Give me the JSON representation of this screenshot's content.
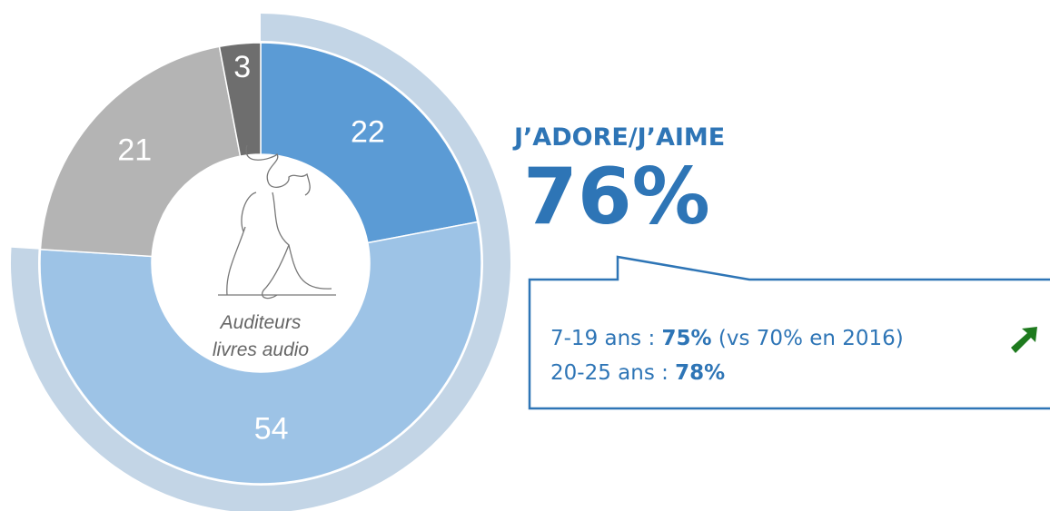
{
  "chart_data": {
    "type": "donut",
    "values": [
      22,
      54,
      21,
      3
    ],
    "colors": [
      "#5b9bd5",
      "#9dc3e6",
      "#b4b4b4",
      "#6e6e6e"
    ],
    "center_label": [
      "Auditeurs",
      "livres audio"
    ],
    "outer": {
      "value": 76,
      "value_label": "76%",
      "color": "#c3d5e6"
    },
    "side": {
      "title": "J’ADORE/J’AIME",
      "lines": [
        {
          "prefix": "7-19 ans : ",
          "value": "75%",
          "note": " (vs 70% en 2016)"
        },
        {
          "prefix": "20-25 ans : ",
          "value": "78%"
        }
      ]
    }
  }
}
